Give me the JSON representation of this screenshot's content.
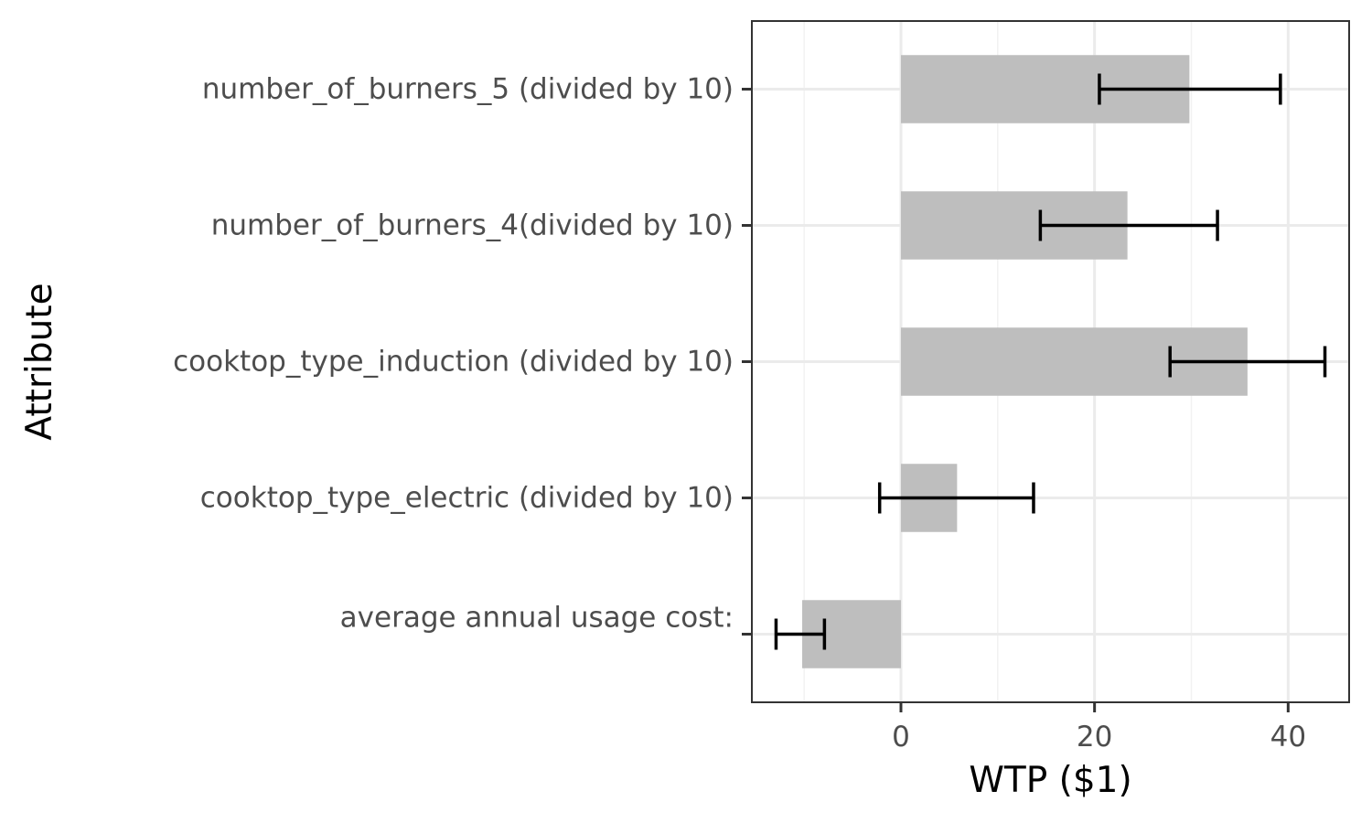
{
  "chart_data": {
    "type": "bar",
    "orientation": "horizontal",
    "categories": [
      "number_of_burners_5 (divided by 10)",
      "number_of_burners_4(divided by 10)",
      "cooktop_type_induction (divided by 10)",
      "cooktop_type_electric (divided by 10)",
      "average annual usage cost:"
    ],
    "values": [
      29.8,
      23.4,
      35.8,
      5.8,
      -10.2
    ],
    "error_bars": [
      {
        "lower": 20.5,
        "upper": 39.2
      },
      {
        "lower": 14.4,
        "upper": 32.7
      },
      {
        "lower": 27.8,
        "upper": 43.8
      },
      {
        "lower": -2.2,
        "upper": 13.7
      },
      {
        "lower": -12.9,
        "upper": -7.9
      }
    ],
    "xlabel": "WTP ($1)",
    "ylabel": "Attribute",
    "xlim": [
      -15.4,
      46.3
    ],
    "xticks": [
      0,
      20,
      40
    ],
    "xtick_labels": [
      "0",
      "20",
      "40"
    ],
    "grid": true,
    "legend": "none",
    "colors": {
      "bar": "#bebebe",
      "error_bar": "#000000",
      "grid": "#ebebeb",
      "panel_border": "#333333",
      "tick_text": "#4d4d4d"
    }
  }
}
